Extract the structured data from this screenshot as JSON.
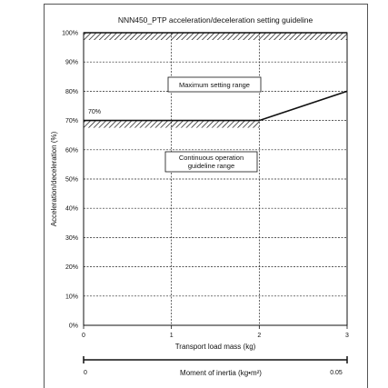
{
  "chart_data": {
    "type": "line",
    "title": "NNN450_PTP acceleration/deceleration setting guideline",
    "xlabel": "Transport load mass (kg)",
    "ylabel": "Acceleration/deceleration (%)",
    "xlim": [
      0,
      3
    ],
    "ylim": [
      0,
      100
    ],
    "x_ticks": [
      "0",
      "1",
      "2",
      "3"
    ],
    "y_ticks": [
      "0%",
      "10%",
      "20%",
      "30%",
      "40%",
      "50%",
      "60%",
      "70%",
      "80%",
      "90%",
      "100%"
    ],
    "grid": true,
    "series": [
      {
        "name": "Maximum setting range",
        "x": [
          0,
          3
        ],
        "y": [
          100,
          100
        ]
      },
      {
        "name": "Continuous operation guideline range",
        "x": [
          0,
          2,
          3
        ],
        "y": [
          70,
          70,
          80
        ]
      }
    ],
    "annotations": {
      "value_label": "70%",
      "max_box": "Maximum setting range",
      "cont_box_line1": "Continuous operation",
      "cont_box_line2": "guideline range"
    },
    "secondary_axis": {
      "label": "Moment of inertia (kg•m²)",
      "min_label": "0",
      "max_label": "0.05",
      "range": [
        0,
        0.05
      ]
    }
  }
}
